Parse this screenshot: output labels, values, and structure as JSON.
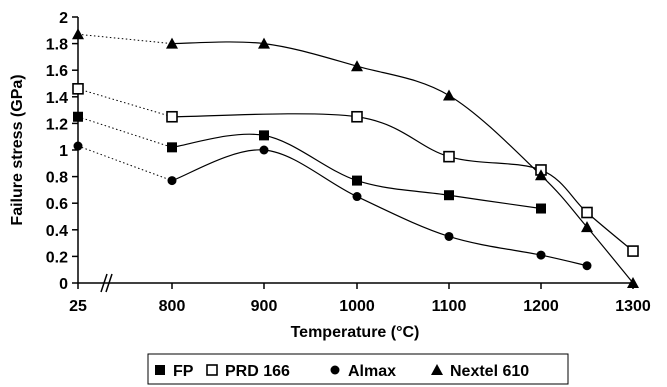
{
  "chart_data": {
    "type": "line",
    "xlabel": "Temperature (°C)",
    "ylabel": "Failure stress (GPa)",
    "ylim": [
      0,
      2
    ],
    "y_ticks": [
      "0",
      "0.2",
      "0.4",
      "0.6",
      "0.8",
      "1",
      "1.2",
      "1.4",
      "1.6",
      "1.8",
      "2"
    ],
    "x_ticks": [
      "25",
      "800",
      "900",
      "1000",
      "1100",
      "1200",
      "1300"
    ],
    "x_axis_break": "between 25 and 800",
    "grid": false,
    "legend_position": "bottom",
    "series": [
      {
        "name": "FP",
        "marker": "filled-square",
        "x": [
          25,
          800,
          900,
          1000,
          1100,
          1200
        ],
        "y": [
          1.25,
          1.02,
          1.11,
          0.77,
          0.66,
          0.56
        ]
      },
      {
        "name": "PRD 166",
        "marker": "open-square",
        "x": [
          25,
          800,
          1000,
          1100,
          1200,
          1250,
          1300
        ],
        "y": [
          1.46,
          1.25,
          1.25,
          0.95,
          0.85,
          0.53,
          0.24
        ]
      },
      {
        "name": "Almax",
        "marker": "filled-circle",
        "x": [
          25,
          800,
          900,
          1000,
          1100,
          1200,
          1250
        ],
        "y": [
          1.03,
          0.77,
          1.0,
          0.65,
          0.35,
          0.21,
          0.13
        ]
      },
      {
        "name": "Nextel 610",
        "marker": "filled-triangle",
        "x": [
          25,
          800,
          900,
          1000,
          1100,
          1200,
          1250,
          1300
        ],
        "y": [
          1.87,
          1.8,
          1.8,
          1.63,
          1.41,
          0.81,
          0.42,
          0.0
        ]
      }
    ]
  },
  "colors": {
    "ink": "#000000",
    "background": "#ffffff"
  }
}
